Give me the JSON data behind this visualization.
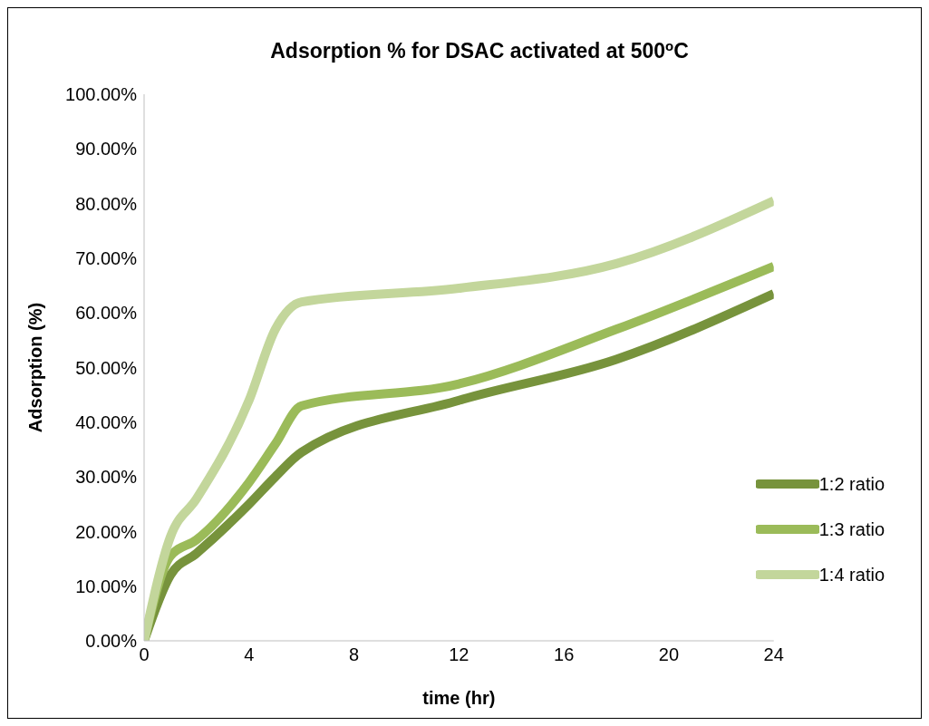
{
  "chart_data": {
    "type": "line",
    "title": "Adsorption % for DSAC activated at 500$^{o}$C",
    "xlabel": "time (hr)",
    "ylabel": "Adsorption (%)",
    "x": [
      0,
      1,
      2,
      4,
      5,
      6,
      12,
      18,
      24
    ],
    "series": [
      {
        "name": "1:2 ratio",
        "color": "#77933c",
        "values": [
          0,
          12,
          16,
          25,
          30,
          34.5,
          44,
          51.5,
          63.5
        ]
      },
      {
        "name": "1:3 ratio",
        "color": "#9bbb59",
        "values": [
          0,
          15.5,
          18.5,
          29,
          36,
          43,
          47,
          57,
          68.5
        ]
      },
      {
        "name": "1:4 ratio",
        "color": "#c3d69b",
        "values": [
          0,
          19,
          26,
          44,
          57,
          62,
          64.5,
          69,
          80.5
        ]
      }
    ],
    "xlim": [
      0,
      24
    ],
    "xticks": [
      0,
      4,
      8,
      12,
      16,
      20,
      24
    ],
    "ylim": [
      0,
      100
    ],
    "yticks": [
      {
        "value": 0,
        "label": "0.00%"
      },
      {
        "value": 10,
        "label": "10.00%"
      },
      {
        "value": 20,
        "label": "20.00%"
      },
      {
        "value": 30,
        "label": "30.00%"
      },
      {
        "value": 40,
        "label": "40.00%"
      },
      {
        "value": 50,
        "label": "50.00%"
      },
      {
        "value": 60,
        "label": "60.00%"
      },
      {
        "value": 70,
        "label": "70.00%"
      },
      {
        "value": 80,
        "label": "80.00%"
      },
      {
        "value": 90,
        "label": "90.00%"
      },
      {
        "value": 100,
        "label": "100.00%"
      }
    ],
    "grid": false,
    "legend": "right",
    "marker": "none",
    "line_style": "solid"
  }
}
